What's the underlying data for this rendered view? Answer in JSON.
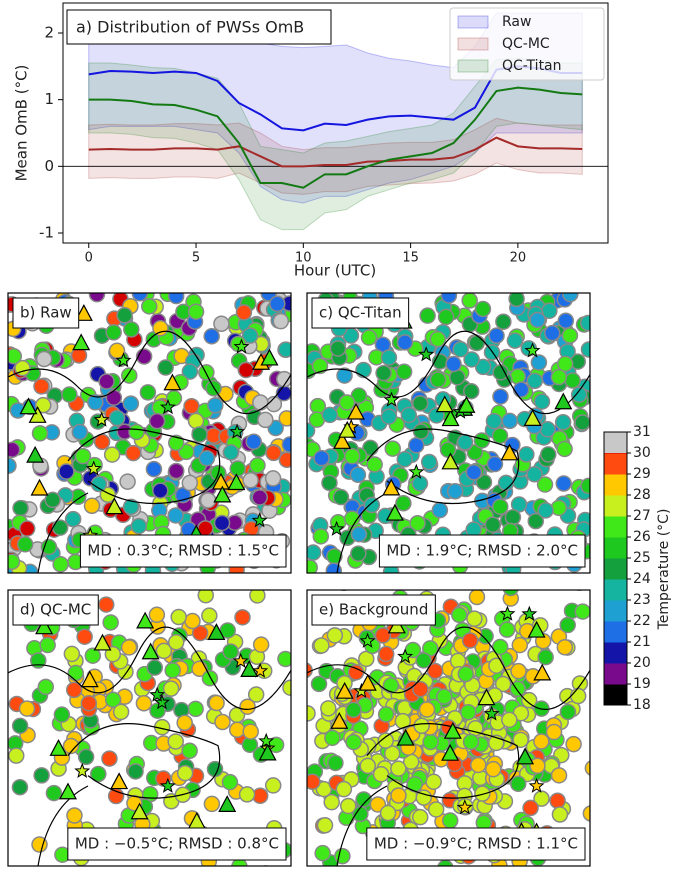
{
  "chart_data": {
    "type": "line",
    "title": "a) Distribution of PWSs OmB",
    "xlabel": "Hour (UTC)",
    "ylabel": "Mean OmB (°C)",
    "x": [
      0,
      1,
      2,
      3,
      4,
      5,
      6,
      7,
      8,
      9,
      10,
      11,
      12,
      13,
      14,
      15,
      16,
      17,
      18,
      19,
      20,
      21,
      22,
      23
    ],
    "xlim": [
      -1.2,
      24.2
    ],
    "xticks": [
      0,
      5,
      10,
      15,
      20
    ],
    "ylim": [
      -1.15,
      2.45
    ],
    "yticks": [
      -1,
      0,
      1,
      2
    ],
    "hline": 0,
    "legend": "upper right",
    "series": [
      {
        "name": "Raw",
        "color": "#1515e0",
        "values": [
          1.38,
          1.43,
          1.42,
          1.4,
          1.42,
          1.4,
          1.28,
          0.95,
          0.78,
          0.57,
          0.54,
          0.64,
          0.62,
          0.7,
          0.75,
          0.76,
          0.73,
          0.7,
          0.88,
          1.45,
          1.5,
          1.47,
          1.4,
          1.4
        ],
        "band_upper": [
          2.2,
          2.2,
          2.2,
          2.2,
          2.2,
          2.15,
          2.1,
          2.0,
          1.85,
          1.8,
          1.78,
          1.8,
          1.82,
          1.7,
          1.62,
          1.58,
          1.52,
          1.48,
          1.8,
          2.3,
          2.3,
          2.3,
          2.3,
          2.3
        ],
        "band_lower": [
          0.55,
          0.6,
          0.6,
          0.6,
          0.6,
          0.55,
          0.5,
          0.2,
          -0.3,
          -0.5,
          -0.55,
          -0.45,
          -0.45,
          -0.35,
          -0.25,
          -0.2,
          -0.1,
          0.0,
          0.2,
          0.5,
          0.5,
          0.5,
          0.5,
          0.5
        ]
      },
      {
        "name": "QC-MC",
        "color": "#a52a2a",
        "values": [
          0.25,
          0.26,
          0.25,
          0.25,
          0.27,
          0.27,
          0.25,
          0.3,
          0.15,
          0.0,
          0.0,
          0.02,
          0.02,
          0.07,
          0.08,
          0.1,
          0.1,
          0.13,
          0.25,
          0.43,
          0.3,
          0.27,
          0.27,
          0.26
        ],
        "band_upper": [
          0.62,
          0.63,
          0.62,
          0.62,
          0.64,
          0.64,
          0.62,
          0.65,
          0.5,
          0.3,
          0.25,
          0.28,
          0.28,
          0.32,
          0.35,
          0.36,
          0.36,
          0.4,
          0.55,
          0.72,
          0.65,
          0.62,
          0.62,
          0.62
        ],
        "band_lower": [
          -0.18,
          -0.17,
          -0.18,
          -0.18,
          -0.16,
          -0.16,
          -0.18,
          -0.1,
          -0.25,
          -0.4,
          -0.42,
          -0.38,
          -0.38,
          -0.3,
          -0.28,
          -0.26,
          -0.25,
          -0.22,
          -0.12,
          0.05,
          -0.05,
          -0.1,
          -0.1,
          -0.12
        ]
      },
      {
        "name": "QC-Titan",
        "color": "#137a13",
        "values": [
          1.0,
          1.0,
          0.98,
          0.93,
          0.92,
          0.85,
          0.75,
          0.35,
          -0.25,
          -0.25,
          -0.32,
          -0.12,
          -0.12,
          0.0,
          0.1,
          0.15,
          0.2,
          0.35,
          0.7,
          1.13,
          1.18,
          1.15,
          1.1,
          1.08
        ],
        "band_upper": [
          1.55,
          1.55,
          1.52,
          1.48,
          1.47,
          1.4,
          1.32,
          0.95,
          0.3,
          0.25,
          0.2,
          0.35,
          0.38,
          0.45,
          0.52,
          0.57,
          0.62,
          0.8,
          1.2,
          1.6,
          1.62,
          1.6,
          1.55,
          1.55
        ],
        "band_lower": [
          0.5,
          0.5,
          0.48,
          0.43,
          0.42,
          0.35,
          0.25,
          -0.2,
          -0.8,
          -0.95,
          -0.95,
          -0.7,
          -0.65,
          -0.45,
          -0.35,
          -0.25,
          -0.2,
          -0.1,
          0.2,
          0.6,
          0.65,
          0.62,
          0.58,
          0.55
        ]
      }
    ]
  },
  "panels": [
    {
      "label": "b) Raw",
      "annotation": "MD : 0.3°C; RMSD : 1.5°C"
    },
    {
      "label": "c) QC-Titan",
      "annotation": "MD : 1.9°C; RMSD : 2.0°C"
    },
    {
      "label": "d) QC-MC",
      "annotation": "MD : −0.5°C; RMSD : 0.8°C"
    },
    {
      "label": "e) Background",
      "annotation": "MD : −0.9°C; RMSD : 1.1°C"
    }
  ],
  "colorbar": {
    "label": "Temperature (°C)",
    "ticks": [
      18,
      19,
      20,
      21,
      22,
      23,
      24,
      25,
      26,
      27,
      28,
      29,
      30,
      31
    ],
    "colors": [
      "#000000",
      "#7a0a8c",
      "#1414a8",
      "#1e6ee6",
      "#1ea0d2",
      "#14b4a0",
      "#14a03c",
      "#1ec81e",
      "#40e81a",
      "#c8f01e",
      "#ffc800",
      "#ff4a10",
      "#d40000"
    ],
    "top_color": "#c8c8c8"
  }
}
